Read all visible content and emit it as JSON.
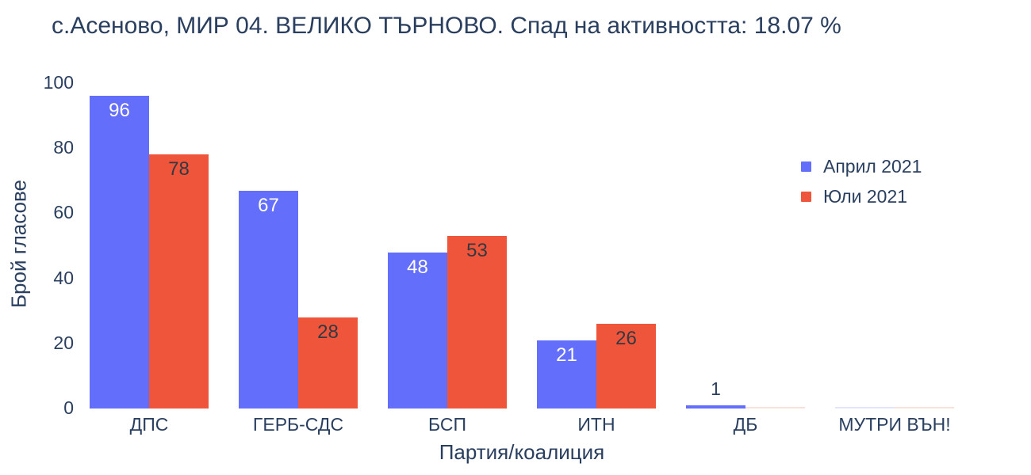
{
  "colors": {
    "text": "#2a3f5f",
    "background": "#ffffff"
  },
  "chart_data": {
    "type": "bar",
    "title": "с.Асеново, МИР 04. ВЕЛИКО ТЪРНОВО. Спад на активността: 18.07 %",
    "categories": [
      "ДПС",
      "ГЕРБ-СДС",
      "БСП",
      "ИТН",
      "ДБ",
      "МУТРИ ВЪН!"
    ],
    "series": [
      {
        "key": "april-2021",
        "name": "Април 2021",
        "values": [
          96,
          67,
          48,
          21,
          1,
          0
        ],
        "color": "#636efa",
        "inside_label_color": "#ffffff"
      },
      {
        "key": "july-2021",
        "name": "Юли 2021",
        "values": [
          78,
          28,
          53,
          26,
          0,
          0
        ],
        "color": "#ef553b",
        "inside_label_color": "#333941"
      }
    ],
    "xlabel": "Партия/коалиция",
    "ylabel": "Брой гласове",
    "ylim": [
      0,
      100
    ],
    "yticks": [
      0,
      20,
      40,
      60,
      80,
      100
    ],
    "grid": false,
    "bar_labels": true,
    "legend_position": "top-right-inside"
  }
}
